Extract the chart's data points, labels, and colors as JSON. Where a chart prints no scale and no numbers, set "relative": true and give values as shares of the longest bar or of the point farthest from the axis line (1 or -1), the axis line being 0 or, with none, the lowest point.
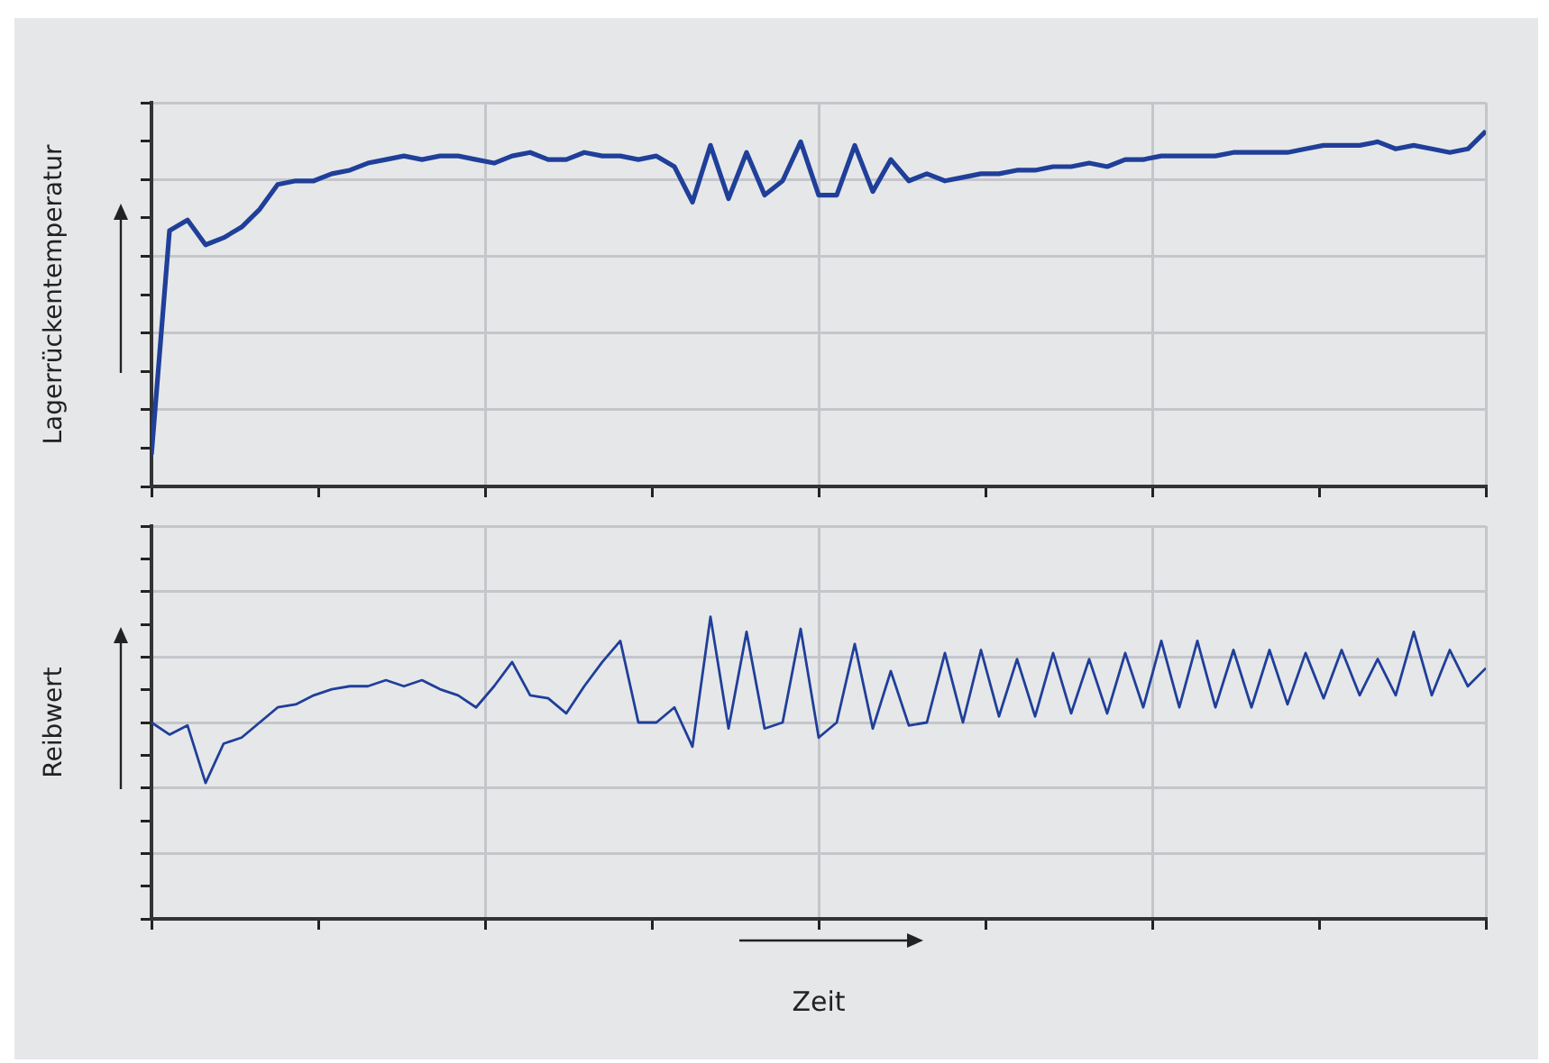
{
  "chart_data": [
    {
      "type": "line",
      "ylabel": "Lagerrückentemperatur",
      "relative": true,
      "grid": true,
      "color": "#1f3f99",
      "categories": [
        null,
        null,
        null,
        null,
        null,
        null,
        null,
        null,
        null,
        null,
        null,
        null,
        null,
        null,
        null,
        null,
        null,
        null,
        null,
        null,
        null,
        null,
        null,
        null,
        null,
        null,
        null,
        null,
        null,
        null,
        null,
        null,
        null,
        null,
        null,
        null,
        null,
        null,
        null,
        null,
        null,
        null,
        null,
        null,
        null,
        null,
        null,
        null,
        null,
        null,
        null,
        null,
        null,
        null,
        null,
        null,
        null,
        null,
        null,
        null,
        null,
        null,
        null,
        null,
        null,
        null,
        null,
        null,
        null,
        null,
        null,
        null,
        null,
        null,
        null
      ],
      "values": [
        0.09,
        0.72,
        0.75,
        0.68,
        0.7,
        0.73,
        0.78,
        0.85,
        0.86,
        0.86,
        0.88,
        0.89,
        0.91,
        0.92,
        0.93,
        0.92,
        0.93,
        0.93,
        0.92,
        0.91,
        0.93,
        0.94,
        0.92,
        0.92,
        0.94,
        0.93,
        0.93,
        0.92,
        0.93,
        0.9,
        0.8,
        0.96,
        0.81,
        0.94,
        0.82,
        0.86,
        0.97,
        0.82,
        0.82,
        0.96,
        0.83,
        0.92,
        0.86,
        0.88,
        0.86,
        0.87,
        0.88,
        0.88,
        0.89,
        0.89,
        0.9,
        0.9,
        0.91,
        0.9,
        0.92,
        0.92,
        0.93,
        0.93,
        0.93,
        0.93,
        0.94,
        0.94,
        0.94,
        0.94,
        0.95,
        0.96,
        0.96,
        0.96,
        0.97,
        0.95,
        0.96,
        0.95,
        0.94,
        0.95,
        1
      ]
    },
    {
      "type": "line",
      "ylabel": "Reibwert",
      "xlabel": "Zeit",
      "relative": true,
      "grid": true,
      "color": "#1f3f99",
      "categories": [
        null,
        null,
        null,
        null,
        null,
        null,
        null,
        null,
        null,
        null,
        null,
        null,
        null,
        null,
        null,
        null,
        null,
        null,
        null,
        null,
        null,
        null,
        null,
        null,
        null,
        null,
        null,
        null,
        null,
        null,
        null,
        null,
        null,
        null,
        null,
        null,
        null,
        null,
        null,
        null,
        null,
        null,
        null,
        null,
        null,
        null,
        null,
        null,
        null,
        null,
        null,
        null,
        null,
        null,
        null,
        null,
        null,
        null,
        null,
        null,
        null,
        null,
        null,
        null,
        null,
        null,
        null,
        null,
        null,
        null,
        null,
        null,
        null,
        null,
        null
      ],
      "values": [
        0.65,
        0.61,
        0.64,
        0.45,
        0.58,
        0.6,
        0.65,
        0.7,
        0.71,
        0.74,
        0.76,
        0.77,
        0.77,
        0.79,
        0.77,
        0.79,
        0.76,
        0.74,
        0.7,
        0.77,
        0.85,
        0.74,
        0.73,
        0.68,
        0.77,
        0.85,
        0.92,
        0.65,
        0.65,
        0.7,
        0.57,
        1,
        0.63,
        0.95,
        0.63,
        0.65,
        0.96,
        0.6,
        0.65,
        0.91,
        0.63,
        0.82,
        0.64,
        0.65,
        0.88,
        0.65,
        0.89,
        0.67,
        0.86,
        0.67,
        0.88,
        0.68,
        0.86,
        0.68,
        0.88,
        0.7,
        0.92,
        0.7,
        0.92,
        0.7,
        0.89,
        0.7,
        0.89,
        0.71,
        0.88,
        0.73,
        0.89,
        0.74,
        0.86,
        0.74,
        0.95,
        0.74,
        0.89,
        0.77,
        0.83
      ]
    }
  ]
}
